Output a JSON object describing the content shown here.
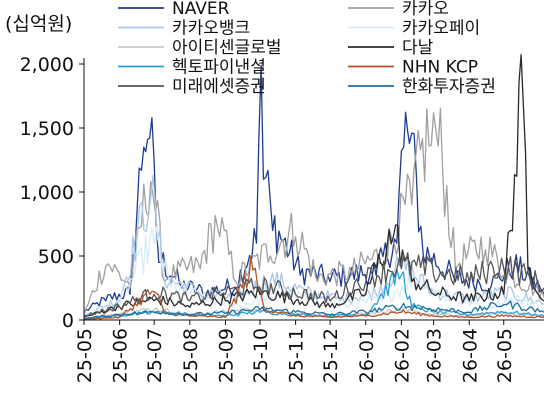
{
  "chart_data": {
    "type": "line",
    "ylabel": "(십억원)",
    "ylim": [
      0,
      2000
    ],
    "y_ticks": [
      "0",
      "500",
      "1,000",
      "1,500",
      "2,000"
    ],
    "y_tick_values": [
      0,
      500,
      1000,
      1500,
      2000
    ],
    "x_range": [
      "2025-05-01",
      "2026-06-05"
    ],
    "x_ticks": [
      "25-05",
      "25-06",
      "25-07",
      "25-08",
      "25-09",
      "25-10",
      "25-11",
      "25-12",
      "26-01",
      "26-02",
      "26-03",
      "26-04",
      "26-05"
    ],
    "grid": false,
    "legend_position": "top",
    "series": [
      {
        "name": "NAVER",
        "color": "#1f3b8f",
        "points": [
          [
            "2025-05-01",
            60
          ],
          [
            "2025-05-20",
            150
          ],
          [
            "2025-06-10",
            200
          ],
          [
            "2025-06-22",
            1350
          ],
          [
            "2025-06-27",
            1420
          ],
          [
            "2025-07-05",
            450
          ],
          [
            "2025-07-25",
            250
          ],
          [
            "2025-08-15",
            200
          ],
          [
            "2025-09-10",
            250
          ],
          [
            "2025-09-28",
            600
          ],
          [
            "2025-10-02",
            1990
          ],
          [
            "2025-10-04",
            1100
          ],
          [
            "2025-10-12",
            700
          ],
          [
            "2025-11-05",
            350
          ],
          [
            "2025-12-01",
            300
          ],
          [
            "2026-01-10",
            350
          ],
          [
            "2026-01-28",
            600
          ],
          [
            "2026-02-03",
            1350
          ],
          [
            "2026-02-08",
            1380
          ],
          [
            "2026-02-20",
            500
          ],
          [
            "2026-03-20",
            300
          ],
          [
            "2026-04-20",
            260
          ],
          [
            "2026-05-10",
            400
          ],
          [
            "2026-06-05",
            200
          ]
        ]
      },
      {
        "name": "카카오",
        "color": "#a0a0a0",
        "points": [
          [
            "2025-05-01",
            40
          ],
          [
            "2025-05-20",
            420
          ],
          [
            "2025-06-10",
            250
          ],
          [
            "2025-06-28",
            1080
          ],
          [
            "2025-07-10",
            300
          ],
          [
            "2025-08-10",
            400
          ],
          [
            "2025-08-25",
            730
          ],
          [
            "2025-09-10",
            300
          ],
          [
            "2025-10-10",
            500
          ],
          [
            "2025-11-01",
            650
          ],
          [
            "2025-11-20",
            300
          ],
          [
            "2025-12-20",
            350
          ],
          [
            "2026-01-20",
            500
          ],
          [
            "2026-02-10",
            900
          ],
          [
            "2026-02-25",
            1360
          ],
          [
            "2026-03-05",
            1360
          ],
          [
            "2026-03-20",
            400
          ],
          [
            "2026-04-15",
            550
          ],
          [
            "2026-05-01",
            350
          ],
          [
            "2026-06-05",
            180
          ]
        ]
      },
      {
        "name": "카카오뱅크",
        "color": "#a9c7ea",
        "points": [
          [
            "2025-05-01",
            30
          ],
          [
            "2025-06-01",
            150
          ],
          [
            "2025-06-28",
            950
          ],
          [
            "2025-07-10",
            300
          ],
          [
            "2025-08-10",
            200
          ],
          [
            "2025-09-10",
            150
          ],
          [
            "2025-10-10",
            300
          ],
          [
            "2025-11-10",
            200
          ],
          [
            "2025-12-10",
            150
          ],
          [
            "2026-01-10",
            200
          ],
          [
            "2026-02-01",
            400
          ],
          [
            "2026-03-01",
            200
          ],
          [
            "2026-04-01",
            150
          ],
          [
            "2026-05-01",
            200
          ],
          [
            "2026-06-05",
            120
          ]
        ]
      },
      {
        "name": "카카오페이",
        "color": "#d8ecf7",
        "points": [
          [
            "2025-05-01",
            20
          ],
          [
            "2025-06-01",
            120
          ],
          [
            "2025-07-01",
            600
          ],
          [
            "2025-07-15",
            250
          ],
          [
            "2025-08-15",
            150
          ],
          [
            "2025-09-15",
            100
          ],
          [
            "2025-10-15",
            200
          ],
          [
            "2025-11-15",
            150
          ],
          [
            "2025-12-15",
            100
          ],
          [
            "2026-01-15",
            150
          ],
          [
            "2026-02-15",
            300
          ],
          [
            "2026-03-15",
            150
          ],
          [
            "2026-04-15",
            100
          ],
          [
            "2026-05-15",
            150
          ],
          [
            "2026-06-05",
            80
          ]
        ]
      },
      {
        "name": "아이티센글로벌",
        "color": "#c8c8c8",
        "points": [
          [
            "2025-05-01",
            10
          ],
          [
            "2025-06-01",
            50
          ],
          [
            "2025-07-01",
            80
          ],
          [
            "2025-08-01",
            40
          ],
          [
            "2025-09-01",
            60
          ],
          [
            "2025-10-01",
            80
          ],
          [
            "2025-11-01",
            40
          ],
          [
            "2025-12-01",
            30
          ],
          [
            "2026-01-01",
            50
          ],
          [
            "2026-02-01",
            70
          ],
          [
            "2026-03-01",
            40
          ],
          [
            "2026-04-01",
            30
          ],
          [
            "2026-05-01",
            50
          ],
          [
            "2026-06-05",
            30
          ]
        ]
      },
      {
        "name": "다날",
        "color": "#2a2a2a",
        "points": [
          [
            "2025-05-01",
            20
          ],
          [
            "2025-06-01",
            100
          ],
          [
            "2025-07-01",
            150
          ],
          [
            "2025-08-01",
            100
          ],
          [
            "2025-09-01",
            150
          ],
          [
            "2025-10-01",
            200
          ],
          [
            "2025-11-01",
            150
          ],
          [
            "2025-12-01",
            100
          ],
          [
            "2026-01-01",
            200
          ],
          [
            "2026-01-25",
            650
          ],
          [
            "2026-02-10",
            300
          ],
          [
            "2026-03-01",
            200
          ],
          [
            "2026-04-01",
            150
          ],
          [
            "2026-05-01",
            200
          ],
          [
            "2026-05-18",
            1690
          ],
          [
            "2026-05-22",
            400
          ],
          [
            "2026-06-05",
            150
          ]
        ]
      },
      {
        "name": "헥토파이낸셜",
        "color": "#2aa0d8",
        "points": [
          [
            "2025-05-01",
            10
          ],
          [
            "2025-06-01",
            30
          ],
          [
            "2025-07-01",
            60
          ],
          [
            "2025-08-01",
            40
          ],
          [
            "2025-09-01",
            30
          ],
          [
            "2025-10-01",
            60
          ],
          [
            "2025-11-01",
            40
          ],
          [
            "2025-12-01",
            30
          ],
          [
            "2026-01-01",
            40
          ],
          [
            "2026-02-01",
            350
          ],
          [
            "2026-02-10",
            100
          ],
          [
            "2026-03-01",
            60
          ],
          [
            "2026-04-01",
            40
          ],
          [
            "2026-05-01",
            60
          ],
          [
            "2026-06-05",
            30
          ]
        ]
      },
      {
        "name": "NHN KCP",
        "color": "#b4532a",
        "points": [
          [
            "2025-05-01",
            5
          ],
          [
            "2025-06-01",
            20
          ],
          [
            "2025-07-01",
            220
          ],
          [
            "2025-07-10",
            50
          ],
          [
            "2025-08-01",
            30
          ],
          [
            "2025-09-01",
            20
          ],
          [
            "2025-09-25",
            390
          ],
          [
            "2025-10-05",
            80
          ],
          [
            "2025-11-01",
            30
          ],
          [
            "2025-12-01",
            20
          ],
          [
            "2026-01-01",
            30
          ],
          [
            "2026-02-01",
            60
          ],
          [
            "2026-03-01",
            30
          ],
          [
            "2026-04-01",
            20
          ],
          [
            "2026-05-01",
            30
          ],
          [
            "2026-06-05",
            20
          ]
        ]
      },
      {
        "name": "미래에셋증권",
        "color": "#555555",
        "points": [
          [
            "2025-05-01",
            30
          ],
          [
            "2025-06-01",
            100
          ],
          [
            "2025-07-01",
            200
          ],
          [
            "2025-08-01",
            150
          ],
          [
            "2025-09-01",
            200
          ],
          [
            "2025-10-01",
            250
          ],
          [
            "2025-11-01",
            200
          ],
          [
            "2025-12-01",
            150
          ],
          [
            "2026-01-01",
            300
          ],
          [
            "2026-02-01",
            400
          ],
          [
            "2026-03-01",
            350
          ],
          [
            "2026-04-01",
            300
          ],
          [
            "2026-05-01",
            400
          ],
          [
            "2026-06-05",
            250
          ]
        ]
      },
      {
        "name": "한화투자증권",
        "color": "#1e6f9f",
        "points": [
          [
            "2025-05-01",
            10
          ],
          [
            "2025-06-01",
            40
          ],
          [
            "2025-07-01",
            60
          ],
          [
            "2025-08-01",
            40
          ],
          [
            "2025-09-01",
            50
          ],
          [
            "2025-10-01",
            80
          ],
          [
            "2025-11-01",
            60
          ],
          [
            "2025-12-01",
            40
          ],
          [
            "2026-01-01",
            60
          ],
          [
            "2026-02-01",
            100
          ],
          [
            "2026-03-01",
            80
          ],
          [
            "2026-04-01",
            60
          ],
          [
            "2026-05-01",
            120
          ],
          [
            "2026-06-05",
            60
          ]
        ]
      }
    ]
  }
}
